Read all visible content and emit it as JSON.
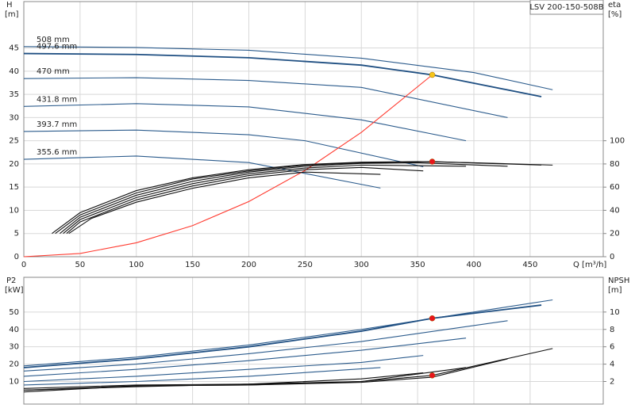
{
  "chart_data": [
    {
      "type": "line",
      "title": "LSV 200-150-508B",
      "ylabel": "H",
      "yunit": "[m]",
      "y2label": "eta",
      "y2unit": "[%]",
      "xlabel": "Q [m³/h]",
      "xlim": [
        0,
        515
      ],
      "xticks": [
        0,
        50,
        100,
        150,
        200,
        250,
        300,
        350,
        400,
        450
      ],
      "ylim": [
        0,
        55
      ],
      "yticks": [
        0,
        5,
        10,
        15,
        20,
        25,
        30,
        35,
        40,
        45
      ],
      "y2lim": [
        0,
        220
      ],
      "y2ticks": [
        0,
        20,
        40,
        60,
        80,
        100
      ],
      "grid": true,
      "series": [
        {
          "name": "508 mm",
          "color": "#2b5b8c",
          "x": [
            0,
            100,
            200,
            300,
            400,
            470
          ],
          "values": [
            45.3,
            45.1,
            44.5,
            42.8,
            39.7,
            36.0
          ]
        },
        {
          "name": "497.6 mm",
          "color": "#1f4f82",
          "x": [
            0,
            100,
            200,
            300,
            363,
            460
          ],
          "values": [
            43.8,
            43.6,
            42.9,
            41.3,
            39.2,
            34.5
          ]
        },
        {
          "name": "470 mm",
          "color": "#2b5b8c",
          "x": [
            0,
            100,
            200,
            300,
            430
          ],
          "values": [
            38.4,
            38.6,
            38.0,
            36.5,
            30.0
          ]
        },
        {
          "name": "431.8 mm",
          "color": "#2b5b8c",
          "x": [
            0,
            100,
            200,
            300,
            393
          ],
          "values": [
            32.4,
            33.0,
            32.3,
            29.5,
            25.0
          ]
        },
        {
          "name": "393.7 mm",
          "color": "#2b5b8c",
          "x": [
            0,
            100,
            200,
            250,
            355
          ],
          "values": [
            27.0,
            27.3,
            26.3,
            25.0,
            19.4
          ]
        },
        {
          "name": "355.6 mm",
          "color": "#2b5b8c",
          "x": [
            0,
            100,
            200,
            317
          ],
          "values": [
            21.0,
            21.7,
            20.3,
            14.8
          ]
        },
        {
          "color": "#ff3b30",
          "x": [
            0,
            50,
            100,
            150,
            200,
            250,
            300,
            363
          ],
          "values": [
            0,
            0.7,
            3.0,
            6.7,
            11.9,
            18.6,
            26.8,
            39.2
          ]
        },
        {
          "color": "#111111",
          "axis": "y2",
          "x": [
            25,
            50,
            100,
            150,
            200,
            250,
            300,
            350,
            400,
            470
          ],
          "values": [
            20,
            38,
            57,
            68,
            75,
            79.5,
            81.5,
            82,
            81,
            79
          ]
        },
        {
          "color": "#111111",
          "axis": "y2",
          "x": [
            28,
            50,
            100,
            150,
            200,
            250,
            300,
            363,
            460
          ],
          "values": [
            20,
            36,
            55,
            67,
            74,
            79,
            81,
            82,
            79
          ]
        },
        {
          "color": "#111111",
          "axis": "y2",
          "x": [
            32,
            50,
            100,
            150,
            200,
            250,
            300,
            350,
            430
          ],
          "values": [
            20,
            34,
            53,
            65,
            73,
            78,
            80.5,
            81,
            78
          ]
        },
        {
          "color": "#111111",
          "axis": "y2",
          "x": [
            35,
            50,
            100,
            150,
            200,
            250,
            300,
            393
          ],
          "values": [
            20,
            32,
            51,
            63,
            71.5,
            76.5,
            79,
            78
          ]
        },
        {
          "color": "#111111",
          "axis": "y2",
          "x": [
            38,
            50,
            100,
            150,
            200,
            250,
            300,
            355
          ],
          "values": [
            20,
            30,
            49,
            61,
            70,
            75,
            77,
            74
          ]
        },
        {
          "color": "#111111",
          "axis": "y2",
          "x": [
            40,
            60,
            100,
            150,
            200,
            250,
            317
          ],
          "values": [
            20,
            33,
            47,
            59,
            68,
            73,
            71
          ]
        }
      ],
      "points": [
        {
          "x": 363,
          "y": 39.2,
          "color": "#f5c518"
        },
        {
          "x": 363,
          "y": 82,
          "color": "#e8141b",
          "axis": "y2"
        }
      ]
    },
    {
      "type": "line",
      "ylabel": "P2",
      "yunit": "[kW]",
      "y2label": "NPSH",
      "y2unit": "[m]",
      "xlim": [
        0,
        515
      ],
      "xticks": [
        0,
        50,
        100,
        150,
        200,
        250,
        300,
        350,
        400,
        450
      ],
      "ylim": [
        -3,
        70
      ],
      "yticks": [
        10,
        20,
        30,
        40,
        50
      ],
      "y2lim": [
        -0.6,
        14
      ],
      "y2ticks": [
        2,
        4,
        6,
        8,
        10
      ],
      "grid": true,
      "series": [
        {
          "color": "#2b5b8c",
          "x": [
            0,
            100,
            200,
            300,
            400,
            470
          ],
          "values": [
            19,
            24,
            31,
            40,
            50,
            57
          ]
        },
        {
          "color": "#1f4f82",
          "x": [
            0,
            100,
            200,
            300,
            363,
            460
          ],
          "values": [
            18,
            23,
            30,
            39,
            46.4,
            54
          ]
        },
        {
          "color": "#2b5b8c",
          "x": [
            0,
            100,
            200,
            300,
            430
          ],
          "values": [
            16,
            20,
            26,
            33,
            45
          ]
        },
        {
          "color": "#2b5b8c",
          "x": [
            0,
            100,
            200,
            300,
            393
          ],
          "values": [
            13,
            17,
            22,
            28,
            35
          ]
        },
        {
          "color": "#2b5b8c",
          "x": [
            0,
            100,
            200,
            300,
            355
          ],
          "values": [
            10,
            13,
            17,
            21,
            25
          ]
        },
        {
          "color": "#2b5b8c",
          "x": [
            0,
            100,
            200,
            317
          ],
          "values": [
            8,
            10,
            13,
            18
          ]
        },
        {
          "color": "#111111",
          "axis": "y2",
          "x": [
            0,
            100,
            200,
            300,
            363,
            470
          ],
          "values": [
            1.2,
            1.6,
            1.7,
            2.0,
            2.7,
            5.8
          ]
        },
        {
          "color": "#111111",
          "axis": "y2",
          "x": [
            0,
            100,
            200,
            300,
            363,
            430
          ],
          "values": [
            1.0,
            1.5,
            1.6,
            1.9,
            2.5,
            4.6
          ]
        },
        {
          "color": "#111111",
          "axis": "y2",
          "x": [
            0,
            100,
            200,
            300,
            393
          ],
          "values": [
            0.8,
            1.5,
            1.6,
            2.0,
            3.6
          ]
        },
        {
          "color": "#111111",
          "axis": "y2",
          "x": [
            0,
            100,
            200,
            300,
            355
          ],
          "values": [
            1.0,
            1.4,
            1.7,
            2.3,
            3.0
          ]
        }
      ],
      "points": [
        {
          "x": 363,
          "y": 46.4,
          "color": "#e8141b"
        },
        {
          "x": 363,
          "y": 2.7,
          "color": "#e8141b",
          "axis": "y2"
        }
      ]
    }
  ]
}
